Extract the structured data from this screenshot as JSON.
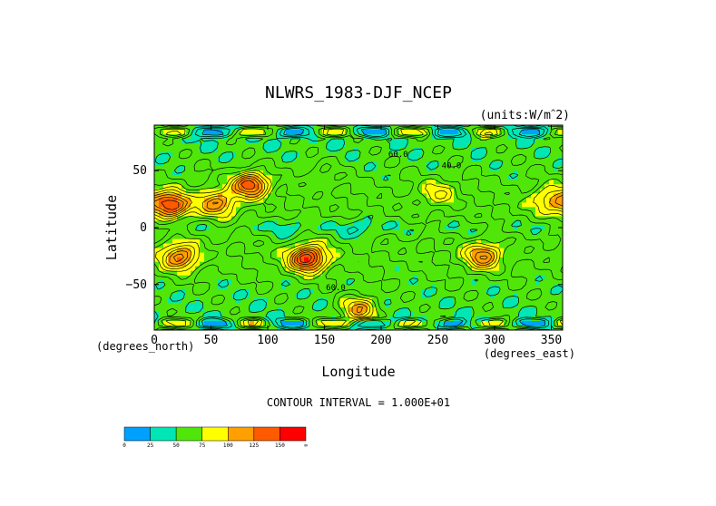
{
  "chart_data": {
    "type": "heatmap",
    "title": "NLWRS_1983-DJF_NCEP",
    "units": "(units:W/m^2)",
    "xlabel": "Longitude",
    "ylabel": "Latitude",
    "x_unit_label": "(degrees_east)",
    "y_unit_label": "(degrees_north)",
    "xlim": [
      0,
      360
    ],
    "ylim": [
      -90,
      90
    ],
    "x_ticks": [
      0,
      50,
      100,
      150,
      200,
      250,
      300,
      350
    ],
    "y_ticks": [
      -50,
      0,
      50
    ],
    "contour_interval_text": "CONTOUR INTERVAL = 1.000E+01",
    "contour_labels": [
      "60.0",
      "40.0",
      "60.0"
    ],
    "colorbar": {
      "labels": [
        "0",
        "25",
        "50",
        "75",
        "100",
        "125",
        "150",
        "∞"
      ],
      "colors": [
        "#00a0ff",
        "#00e6b4",
        "#50e60a",
        "#ffff00",
        "#ffa000",
        "#ff5a00",
        "#ff0000"
      ]
    },
    "field_features": [
      {
        "name": "Sahara high",
        "lon": 15,
        "lat": 20,
        "level": 140
      },
      {
        "name": "Arabia high",
        "lon": 55,
        "lat": 22,
        "level": 115
      },
      {
        "name": "Tibet high",
        "lon": 85,
        "lat": 38,
        "level": 140
      },
      {
        "name": "N. Pacific band",
        "lon": 150,
        "lat": 45,
        "level": 75
      },
      {
        "name": "Mexico high",
        "lon": 250,
        "lat": 30,
        "level": 85
      },
      {
        "name": "Sahara west",
        "lon": 350,
        "lat": 25,
        "level": 100
      },
      {
        "name": "S. Africa high",
        "lon": 22,
        "lat": -26,
        "level": 125
      },
      {
        "name": "Australia high",
        "lon": 135,
        "lat": -27,
        "level": 150
      },
      {
        "name": "S. America high",
        "lon": 290,
        "lat": -25,
        "level": 115
      },
      {
        "name": "Tropical Pacific low",
        "lon": 180,
        "lat": 0,
        "level": 40
      },
      {
        "name": "Maritime continent low",
        "lon": 120,
        "lat": 0,
        "level": 45
      },
      {
        "name": "Antarctic coast",
        "lon": 180,
        "lat": -72,
        "level": 110
      }
    ]
  }
}
